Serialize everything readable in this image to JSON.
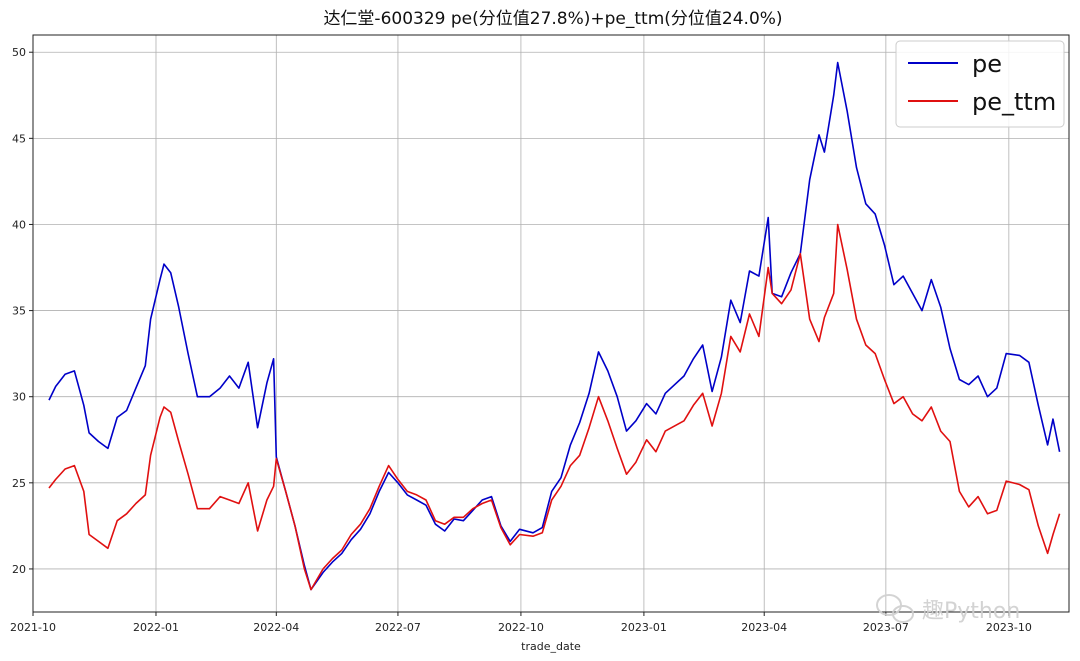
{
  "chart_data": {
    "type": "line",
    "title": "达仁堂-600329 pe(分位值27.8%)+pe_ttm(分位值24.0%)",
    "xlabel": "trade_date",
    "ylabel": "",
    "xlim": [
      "2021-10-01",
      "2023-11-15"
    ],
    "ylim": [
      17.5,
      51
    ],
    "x_ticks": [
      "2021-10",
      "2022-01",
      "2022-04",
      "2022-07",
      "2022-10",
      "2023-01",
      "2023-04",
      "2023-07",
      "2023-10"
    ],
    "y_ticks": [
      20,
      25,
      30,
      35,
      40,
      45,
      50
    ],
    "grid": true,
    "legend_position": "top-right",
    "series": [
      {
        "name": "pe",
        "color": "#0000c8",
        "points": [
          [
            "2021-10-13",
            29.8
          ],
          [
            "2021-10-18",
            30.6
          ],
          [
            "2021-10-25",
            31.3
          ],
          [
            "2021-11-01",
            31.5
          ],
          [
            "2021-11-08",
            29.5
          ],
          [
            "2021-11-12",
            27.9
          ],
          [
            "2021-11-19",
            27.4
          ],
          [
            "2021-11-26",
            27.0
          ],
          [
            "2021-12-03",
            28.8
          ],
          [
            "2021-12-10",
            29.2
          ],
          [
            "2021-12-17",
            30.5
          ],
          [
            "2021-12-24",
            31.8
          ],
          [
            "2021-12-28",
            34.5
          ],
          [
            "2022-01-04",
            36.8
          ],
          [
            "2022-01-07",
            37.7
          ],
          [
            "2022-01-12",
            37.2
          ],
          [
            "2022-01-18",
            35.2
          ],
          [
            "2022-01-25",
            32.5
          ],
          [
            "2022-02-01",
            30.0
          ],
          [
            "2022-02-10",
            30.0
          ],
          [
            "2022-02-18",
            30.5
          ],
          [
            "2022-02-25",
            31.2
          ],
          [
            "2022-03-04",
            30.5
          ],
          [
            "2022-03-11",
            32.0
          ],
          [
            "2022-03-18",
            28.2
          ],
          [
            "2022-03-25",
            30.8
          ],
          [
            "2022-03-30",
            32.2
          ],
          [
            "2022-04-01",
            26.5
          ],
          [
            "2022-04-08",
            24.5
          ],
          [
            "2022-04-15",
            22.5
          ],
          [
            "2022-04-22",
            20.2
          ],
          [
            "2022-04-27",
            18.8
          ],
          [
            "2022-05-06",
            19.8
          ],
          [
            "2022-05-13",
            20.4
          ],
          [
            "2022-05-20",
            20.9
          ],
          [
            "2022-05-27",
            21.7
          ],
          [
            "2022-06-03",
            22.3
          ],
          [
            "2022-06-10",
            23.2
          ],
          [
            "2022-06-17",
            24.5
          ],
          [
            "2022-06-24",
            25.6
          ],
          [
            "2022-07-01",
            25.0
          ],
          [
            "2022-07-08",
            24.3
          ],
          [
            "2022-07-15",
            24.0
          ],
          [
            "2022-07-22",
            23.7
          ],
          [
            "2022-07-29",
            22.6
          ],
          [
            "2022-08-05",
            22.2
          ],
          [
            "2022-08-12",
            22.9
          ],
          [
            "2022-08-19",
            22.8
          ],
          [
            "2022-08-26",
            23.4
          ],
          [
            "2022-09-02",
            24.0
          ],
          [
            "2022-09-09",
            24.2
          ],
          [
            "2022-09-16",
            22.5
          ],
          [
            "2022-09-23",
            21.6
          ],
          [
            "2022-09-30",
            22.3
          ],
          [
            "2022-10-10",
            22.1
          ],
          [
            "2022-10-17",
            22.4
          ],
          [
            "2022-10-24",
            24.5
          ],
          [
            "2022-10-31",
            25.3
          ],
          [
            "2022-11-07",
            27.2
          ],
          [
            "2022-11-14",
            28.5
          ],
          [
            "2022-11-21",
            30.2
          ],
          [
            "2022-11-28",
            32.6
          ],
          [
            "2022-12-05",
            31.5
          ],
          [
            "2022-12-12",
            30.0
          ],
          [
            "2022-12-19",
            28.0
          ],
          [
            "2022-12-26",
            28.6
          ],
          [
            "2023-01-03",
            29.6
          ],
          [
            "2023-01-10",
            29.0
          ],
          [
            "2023-01-17",
            30.2
          ],
          [
            "2023-01-31",
            31.2
          ],
          [
            "2023-02-07",
            32.2
          ],
          [
            "2023-02-14",
            33.0
          ],
          [
            "2023-02-21",
            30.3
          ],
          [
            "2023-02-28",
            32.3
          ],
          [
            "2023-03-07",
            35.6
          ],
          [
            "2023-03-14",
            34.3
          ],
          [
            "2023-03-21",
            37.3
          ],
          [
            "2023-03-28",
            37.0
          ],
          [
            "2023-04-04",
            40.4
          ],
          [
            "2023-04-07",
            36.0
          ],
          [
            "2023-04-14",
            35.8
          ],
          [
            "2023-04-21",
            37.2
          ],
          [
            "2023-04-28",
            38.3
          ],
          [
            "2023-05-05",
            42.6
          ],
          [
            "2023-05-12",
            45.2
          ],
          [
            "2023-05-16",
            44.2
          ],
          [
            "2023-05-23",
            47.5
          ],
          [
            "2023-05-26",
            49.4
          ],
          [
            "2023-06-02",
            46.6
          ],
          [
            "2023-06-09",
            43.3
          ],
          [
            "2023-06-16",
            41.2
          ],
          [
            "2023-06-23",
            40.6
          ],
          [
            "2023-06-30",
            38.8
          ],
          [
            "2023-07-07",
            36.5
          ],
          [
            "2023-07-14",
            37.0
          ],
          [
            "2023-07-21",
            36.0
          ],
          [
            "2023-07-28",
            35.0
          ],
          [
            "2023-08-04",
            36.8
          ],
          [
            "2023-08-11",
            35.2
          ],
          [
            "2023-08-18",
            32.8
          ],
          [
            "2023-08-25",
            31.0
          ],
          [
            "2023-09-01",
            30.7
          ],
          [
            "2023-09-08",
            31.2
          ],
          [
            "2023-09-15",
            30.0
          ],
          [
            "2023-09-22",
            30.5
          ],
          [
            "2023-09-29",
            32.5
          ],
          [
            "2023-10-09",
            32.4
          ],
          [
            "2023-10-16",
            32.0
          ],
          [
            "2023-10-23",
            29.5
          ],
          [
            "2023-10-30",
            27.2
          ],
          [
            "2023-11-03",
            28.7
          ],
          [
            "2023-11-08",
            26.8
          ]
        ]
      },
      {
        "name": "pe_ttm",
        "color": "#e01010",
        "points": [
          [
            "2021-10-13",
            24.7
          ],
          [
            "2021-10-18",
            25.2
          ],
          [
            "2021-10-25",
            25.8
          ],
          [
            "2021-11-01",
            26.0
          ],
          [
            "2021-11-08",
            24.5
          ],
          [
            "2021-11-12",
            22.0
          ],
          [
            "2021-11-19",
            21.6
          ],
          [
            "2021-11-26",
            21.2
          ],
          [
            "2021-12-03",
            22.8
          ],
          [
            "2021-12-10",
            23.2
          ],
          [
            "2021-12-17",
            23.8
          ],
          [
            "2021-12-24",
            24.3
          ],
          [
            "2021-12-28",
            26.6
          ],
          [
            "2022-01-04",
            28.8
          ],
          [
            "2022-01-07",
            29.4
          ],
          [
            "2022-01-12",
            29.1
          ],
          [
            "2022-01-18",
            27.4
          ],
          [
            "2022-01-25",
            25.5
          ],
          [
            "2022-02-01",
            23.5
          ],
          [
            "2022-02-10",
            23.5
          ],
          [
            "2022-02-18",
            24.2
          ],
          [
            "2022-02-25",
            24.0
          ],
          [
            "2022-03-04",
            23.8
          ],
          [
            "2022-03-11",
            25.0
          ],
          [
            "2022-03-18",
            22.2
          ],
          [
            "2022-03-25",
            24.0
          ],
          [
            "2022-03-30",
            24.8
          ],
          [
            "2022-04-01",
            26.4
          ],
          [
            "2022-04-08",
            24.5
          ],
          [
            "2022-04-15",
            22.5
          ],
          [
            "2022-04-22",
            20.0
          ],
          [
            "2022-04-27",
            18.8
          ],
          [
            "2022-05-06",
            20.0
          ],
          [
            "2022-05-13",
            20.6
          ],
          [
            "2022-05-20",
            21.1
          ],
          [
            "2022-05-27",
            22.0
          ],
          [
            "2022-06-03",
            22.6
          ],
          [
            "2022-06-10",
            23.5
          ],
          [
            "2022-06-17",
            24.8
          ],
          [
            "2022-06-24",
            26.0
          ],
          [
            "2022-07-01",
            25.2
          ],
          [
            "2022-07-08",
            24.5
          ],
          [
            "2022-07-15",
            24.3
          ],
          [
            "2022-07-22",
            24.0
          ],
          [
            "2022-07-29",
            22.8
          ],
          [
            "2022-08-05",
            22.6
          ],
          [
            "2022-08-12",
            23.0
          ],
          [
            "2022-08-19",
            23.0
          ],
          [
            "2022-08-26",
            23.5
          ],
          [
            "2022-09-02",
            23.8
          ],
          [
            "2022-09-09",
            24.0
          ],
          [
            "2022-09-16",
            22.4
          ],
          [
            "2022-09-23",
            21.4
          ],
          [
            "2022-09-30",
            22.0
          ],
          [
            "2022-10-10",
            21.9
          ],
          [
            "2022-10-17",
            22.1
          ],
          [
            "2022-10-24",
            24.0
          ],
          [
            "2022-10-31",
            24.8
          ],
          [
            "2022-11-07",
            26.0
          ],
          [
            "2022-11-14",
            26.6
          ],
          [
            "2022-11-21",
            28.2
          ],
          [
            "2022-11-28",
            30.0
          ],
          [
            "2022-12-05",
            28.6
          ],
          [
            "2022-12-12",
            27.0
          ],
          [
            "2022-12-19",
            25.5
          ],
          [
            "2022-12-26",
            26.2
          ],
          [
            "2023-01-03",
            27.5
          ],
          [
            "2023-01-10",
            26.8
          ],
          [
            "2023-01-17",
            28.0
          ],
          [
            "2023-01-31",
            28.6
          ],
          [
            "2023-02-07",
            29.5
          ],
          [
            "2023-02-14",
            30.2
          ],
          [
            "2023-02-21",
            28.3
          ],
          [
            "2023-02-28",
            30.2
          ],
          [
            "2023-03-07",
            33.5
          ],
          [
            "2023-03-14",
            32.6
          ],
          [
            "2023-03-21",
            34.8
          ],
          [
            "2023-03-28",
            33.5
          ],
          [
            "2023-04-04",
            37.5
          ],
          [
            "2023-04-07",
            36.0
          ],
          [
            "2023-04-14",
            35.4
          ],
          [
            "2023-04-21",
            36.2
          ],
          [
            "2023-04-28",
            38.3
          ],
          [
            "2023-05-05",
            34.5
          ],
          [
            "2023-05-12",
            33.2
          ],
          [
            "2023-05-16",
            34.6
          ],
          [
            "2023-05-23",
            36.0
          ],
          [
            "2023-05-26",
            40.0
          ],
          [
            "2023-06-02",
            37.4
          ],
          [
            "2023-06-09",
            34.5
          ],
          [
            "2023-06-16",
            33.0
          ],
          [
            "2023-06-23",
            32.5
          ],
          [
            "2023-06-30",
            31.0
          ],
          [
            "2023-07-07",
            29.6
          ],
          [
            "2023-07-14",
            30.0
          ],
          [
            "2023-07-21",
            29.0
          ],
          [
            "2023-07-28",
            28.6
          ],
          [
            "2023-08-04",
            29.4
          ],
          [
            "2023-08-11",
            28.0
          ],
          [
            "2023-08-18",
            27.4
          ],
          [
            "2023-08-25",
            24.5
          ],
          [
            "2023-09-01",
            23.6
          ],
          [
            "2023-09-08",
            24.2
          ],
          [
            "2023-09-15",
            23.2
          ],
          [
            "2023-09-22",
            23.4
          ],
          [
            "2023-09-29",
            25.1
          ],
          [
            "2023-10-09",
            24.9
          ],
          [
            "2023-10-16",
            24.6
          ],
          [
            "2023-10-23",
            22.5
          ],
          [
            "2023-10-30",
            20.9
          ],
          [
            "2023-11-03",
            22.0
          ],
          [
            "2023-11-08",
            23.2
          ]
        ]
      }
    ]
  },
  "watermark": {
    "text": "趣Python",
    "icon": "wechat-icon"
  }
}
